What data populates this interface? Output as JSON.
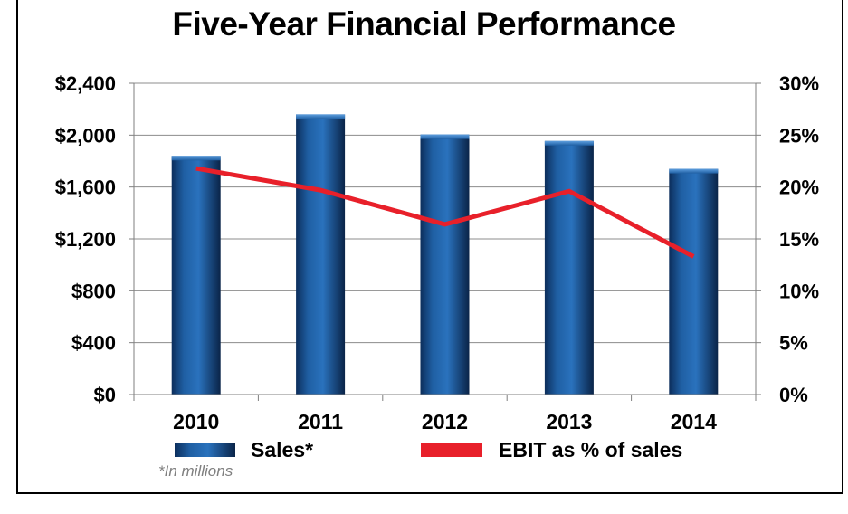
{
  "chart_data": {
    "type": "bar",
    "title": "Five-Year Financial Performance",
    "categories": [
      "2010",
      "2011",
      "2012",
      "2013",
      "2014"
    ],
    "series": [
      {
        "name": "Sales*",
        "type": "bar",
        "axis": "left",
        "color": "#1f5fa3",
        "values": [
          1840,
          2160,
          2005,
          1955,
          1740
        ]
      },
      {
        "name": "EBIT as % of sales",
        "type": "line",
        "axis": "right",
        "color": "#e8202a",
        "values": [
          21.8,
          19.7,
          16.4,
          19.6,
          13.3
        ]
      }
    ],
    "y_left": {
      "ylim": [
        0,
        2400
      ],
      "ticks": [
        "$0",
        "$400",
        "$800",
        "$1,200",
        "$1,600",
        "$2,000",
        "$2,400"
      ]
    },
    "y_right": {
      "ylim": [
        0,
        30
      ],
      "ticks": [
        "0%",
        "5%",
        "10%",
        "15%",
        "20%",
        "25%",
        "30%"
      ]
    },
    "grid": true,
    "legend": "bottom",
    "footnote": "*In millions"
  }
}
